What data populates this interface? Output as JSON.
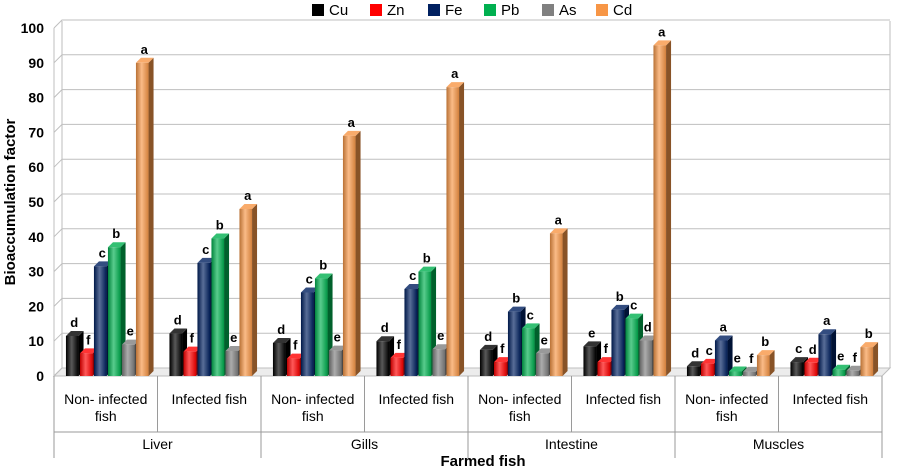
{
  "chart_data": {
    "type": "bar",
    "xlabel": "Farmed fish",
    "ylabel": "Bioaccumulation factor",
    "ylim": [
      0,
      100
    ],
    "yticks": [
      0,
      10,
      20,
      30,
      40,
      50,
      60,
      70,
      80,
      90,
      100
    ],
    "legend_position": "top-center",
    "groups": [
      {
        "organ": "Liver",
        "categories": [
          {
            "label": "Non- infected fish",
            "values": [
              11.5,
              6.5,
              31.5,
              37,
              9,
              90
            ],
            "letters": [
              "d",
              "f",
              "c",
              "b",
              "e",
              "a"
            ]
          },
          {
            "label": "Infected fish",
            "values": [
              12.2,
              7,
              32.5,
              39.5,
              7.2,
              48
            ],
            "letters": [
              "d",
              "f",
              "c",
              "b",
              "e",
              "a"
            ]
          }
        ]
      },
      {
        "organ": "Gills",
        "categories": [
          {
            "label": "Non- infected fish",
            "values": [
              9.5,
              5,
              24,
              28,
              7.3,
              69
            ],
            "letters": [
              "d",
              "f",
              "c",
              "b",
              "e",
              "a"
            ]
          },
          {
            "label": "Infected fish",
            "values": [
              10,
              5.2,
              25,
              30,
              7.7,
              83
            ],
            "letters": [
              "d",
              "f",
              "c",
              "b",
              "e",
              "a"
            ]
          }
        ]
      },
      {
        "organ": "Intestine",
        "categories": [
          {
            "label": "Non- infected fish",
            "values": [
              7.5,
              4,
              18.5,
              13.7,
              6.5,
              41
            ],
            "letters": [
              "d",
              "f",
              "b",
              "c",
              "e",
              "a"
            ]
          },
          {
            "label": "Infected fish",
            "values": [
              8.5,
              4,
              19,
              16.5,
              10.2,
              95
            ],
            "letters": [
              "e",
              "f",
              "b",
              "c",
              "d",
              "a"
            ]
          }
        ]
      },
      {
        "organ": "Muscles",
        "categories": [
          {
            "label": "Non- infected fish",
            "values": [
              2.8,
              3.5,
              10.2,
              1.3,
              1.2,
              6
            ],
            "letters": [
              "d",
              "c",
              "a",
              "e",
              "f",
              "b"
            ]
          },
          {
            "label": "Infected fish",
            "values": [
              4,
              3.8,
              12,
              1.8,
              1.5,
              8.3
            ],
            "letters": [
              "c",
              "d",
              "a",
              "e",
              "f",
              "b"
            ]
          }
        ]
      }
    ],
    "series": [
      {
        "name": "Cu",
        "color": "#000000"
      },
      {
        "name": "Zn",
        "color": "#ff0000"
      },
      {
        "name": "Fe",
        "color": "#002060"
      },
      {
        "name": "Pb",
        "color": "#00b050"
      },
      {
        "name": "As",
        "color": "#808080"
      },
      {
        "name": "Cd",
        "color": "#f79646"
      }
    ]
  }
}
